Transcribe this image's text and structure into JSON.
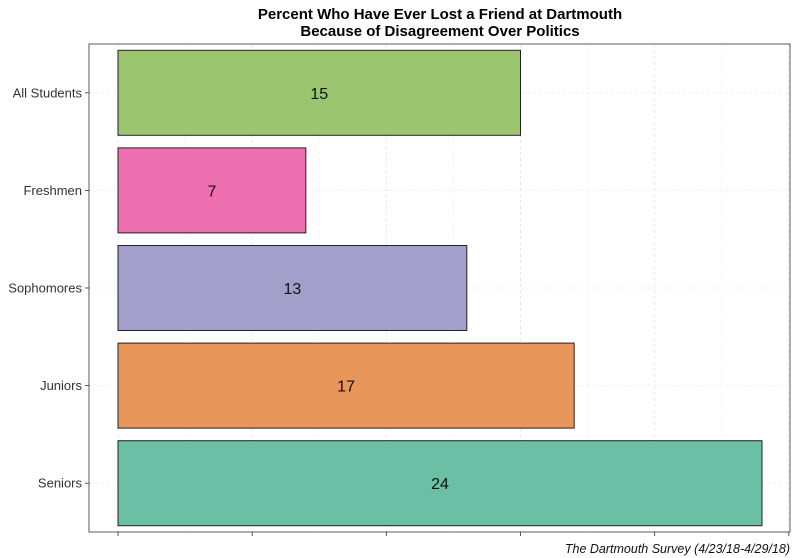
{
  "chart_data": {
    "type": "bar",
    "orientation": "horizontal",
    "title_line1": "Percent Who Have Ever Lost a Friend at Dartmouth",
    "title_line2": "Because of Disagreement Over Politics",
    "caption": "The Dartmouth Survey (4/23/18-4/29/18)",
    "categories": [
      "All Students",
      "Freshmen",
      "Sophomores",
      "Juniors",
      "Seniors"
    ],
    "values": [
      15,
      7,
      13,
      17,
      24
    ],
    "colors": [
      "#9bc56e",
      "#ee70b0",
      "#a29fcb",
      "#e8965a",
      "#6bbfa4"
    ],
    "xlim": [
      0,
      25
    ],
    "grid": true,
    "legend": "none"
  }
}
